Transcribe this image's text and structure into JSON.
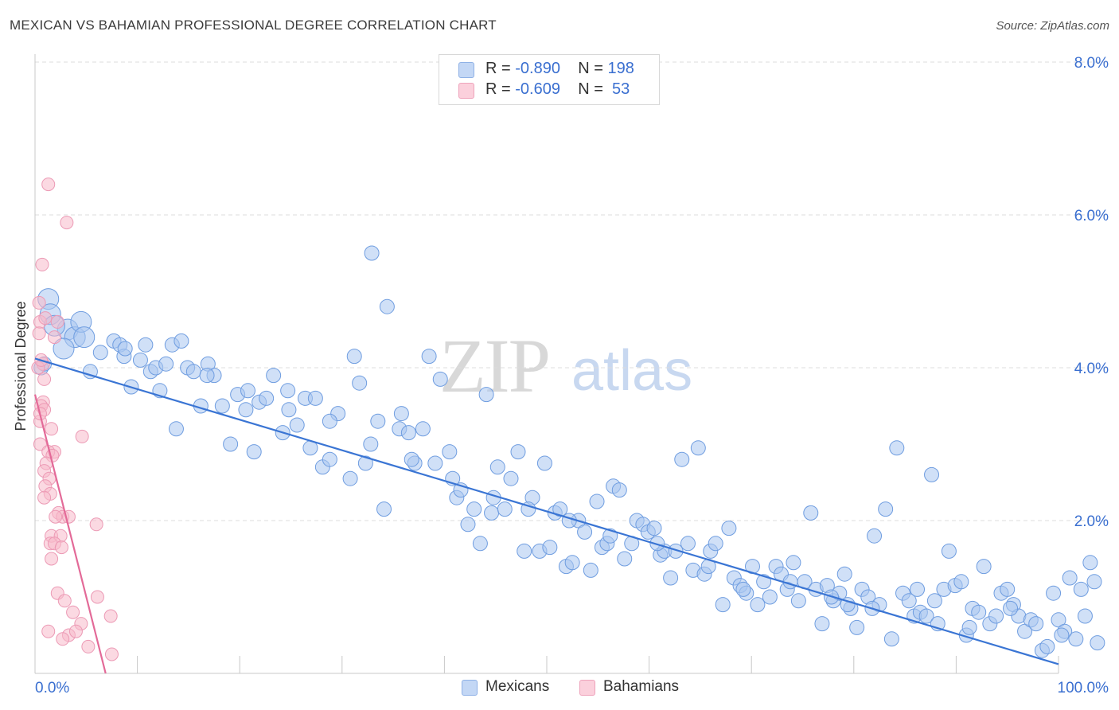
{
  "header": {
    "title": "MEXICAN VS BAHAMIAN PROFESSIONAL DEGREE CORRELATION CHART",
    "source": "Source: ZipAtlas.com"
  },
  "watermark": {
    "part1": "ZIP",
    "part2": "atlas"
  },
  "legend": {
    "rows": [
      {
        "r_label": "R = ",
        "r_value": "-0.890",
        "n_label": "N = ",
        "n_value": "198",
        "color": "#a9c6f0"
      },
      {
        "r_label": "R = ",
        "r_value": "-0.609",
        "n_label": "N = ",
        "n_value": " 53",
        "color": "#f7b9cb"
      }
    ],
    "bottom": [
      {
        "name": "Mexicans",
        "color": "#a9c6f0"
      },
      {
        "name": "Bahamians",
        "color": "#f7b9cb"
      }
    ]
  },
  "chart_data": {
    "type": "scatter",
    "title": "MEXICAN VS BAHAMIAN PROFESSIONAL DEGREE CORRELATION CHART",
    "xlabel": "",
    "ylabel": "Professional Degree",
    "xlim": [
      0,
      100
    ],
    "ylim": [
      0,
      8.0
    ],
    "x_tick_labels": [
      "0.0%",
      "100.0%"
    ],
    "y_ticks": [
      2.0,
      4.0,
      6.0,
      8.0
    ],
    "y_tick_labels": [
      "2.0%",
      "4.0%",
      "6.0%",
      "8.0%"
    ],
    "grid": "horizontal dashed",
    "legend_placement": "top-center",
    "colors": {
      "mexicans": "#3a75d4",
      "mexicans_fill": "#a9c6f0",
      "bahamians": "#e36a98",
      "bahamians_fill": "#f7b9cb"
    },
    "series": [
      {
        "name": "Mexicans",
        "r": -0.89,
        "n": 198,
        "trend": [
          [
            0,
            4.12
          ],
          [
            100,
            0.12
          ]
        ],
        "points": [
          [
            1.3,
            4.9
          ],
          [
            1.5,
            4.7
          ],
          [
            3.2,
            4.5
          ],
          [
            3.9,
            4.4
          ],
          [
            2.8,
            4.25
          ],
          [
            4.5,
            4.6
          ],
          [
            0.6,
            4.0
          ],
          [
            0.9,
            4.05
          ],
          [
            5.4,
            3.95
          ],
          [
            6.4,
            4.2
          ],
          [
            7.7,
            4.35
          ],
          [
            8.3,
            4.3
          ],
          [
            8.7,
            4.15
          ],
          [
            9.4,
            3.75
          ],
          [
            10.8,
            4.3
          ],
          [
            10.3,
            4.1
          ],
          [
            11.3,
            3.95
          ],
          [
            12.2,
            3.7
          ],
          [
            11.8,
            4.0
          ],
          [
            13.4,
            4.3
          ],
          [
            14.3,
            4.35
          ],
          [
            14.9,
            4.0
          ],
          [
            13.8,
            3.2
          ],
          [
            16.2,
            3.5
          ],
          [
            15.5,
            3.95
          ],
          [
            16.9,
            4.05
          ],
          [
            17.5,
            3.9
          ],
          [
            18.3,
            3.5
          ],
          [
            19.1,
            3.0
          ],
          [
            19.8,
            3.65
          ],
          [
            20.6,
            3.45
          ],
          [
            21.4,
            2.9
          ],
          [
            21.9,
            3.55
          ],
          [
            22.6,
            3.6
          ],
          [
            23.3,
            3.9
          ],
          [
            24.2,
            3.15
          ],
          [
            24.7,
            3.7
          ],
          [
            25.6,
            3.25
          ],
          [
            26.4,
            3.6
          ],
          [
            26.9,
            2.95
          ],
          [
            27.4,
            3.6
          ],
          [
            28.1,
            2.7
          ],
          [
            28.8,
            2.8
          ],
          [
            29.6,
            3.4
          ],
          [
            30.8,
            2.55
          ],
          [
            31.2,
            4.15
          ],
          [
            31.7,
            3.8
          ],
          [
            32.3,
            2.75
          ],
          [
            32.9,
            5.5
          ],
          [
            33.5,
            3.3
          ],
          [
            34.4,
            4.8
          ],
          [
            34.1,
            2.15
          ],
          [
            35.8,
            3.4
          ],
          [
            35.6,
            3.2
          ],
          [
            36.5,
            3.15
          ],
          [
            37.1,
            2.75
          ],
          [
            37.9,
            3.2
          ],
          [
            38.5,
            4.15
          ],
          [
            39.1,
            2.75
          ],
          [
            39.6,
            3.85
          ],
          [
            40.5,
            2.9
          ],
          [
            41.2,
            2.3
          ],
          [
            41.6,
            2.4
          ],
          [
            42.3,
            1.95
          ],
          [
            42.9,
            2.15
          ],
          [
            43.5,
            1.7
          ],
          [
            44.1,
            3.65
          ],
          [
            44.6,
            2.1
          ],
          [
            45.2,
            2.7
          ],
          [
            45.9,
            2.15
          ],
          [
            46.5,
            2.55
          ],
          [
            47.2,
            2.9
          ],
          [
            47.8,
            1.6
          ],
          [
            48.6,
            2.3
          ],
          [
            49.3,
            1.6
          ],
          [
            49.8,
            2.75
          ],
          [
            50.3,
            1.65
          ],
          [
            50.8,
            2.1
          ],
          [
            51.3,
            2.15
          ],
          [
            51.9,
            1.4
          ],
          [
            52.5,
            1.45
          ],
          [
            53.1,
            2.0
          ],
          [
            53.7,
            1.85
          ],
          [
            54.3,
            1.35
          ],
          [
            54.9,
            2.25
          ],
          [
            55.4,
            1.65
          ],
          [
            55.9,
            1.7
          ],
          [
            56.5,
            2.45
          ],
          [
            57.1,
            2.4
          ],
          [
            57.6,
            1.5
          ],
          [
            58.3,
            1.7
          ],
          [
            58.8,
            2.0
          ],
          [
            59.4,
            1.95
          ],
          [
            59.9,
            1.85
          ],
          [
            60.5,
            1.9
          ],
          [
            61.1,
            1.55
          ],
          [
            61.5,
            1.6
          ],
          [
            62.1,
            1.25
          ],
          [
            62.6,
            1.6
          ],
          [
            63.2,
            2.8
          ],
          [
            63.8,
            1.7
          ],
          [
            64.3,
            1.35
          ],
          [
            64.8,
            2.95
          ],
          [
            65.4,
            1.3
          ],
          [
            66.0,
            1.6
          ],
          [
            66.5,
            1.7
          ],
          [
            67.2,
            0.9
          ],
          [
            67.8,
            1.9
          ],
          [
            68.3,
            1.25
          ],
          [
            68.9,
            1.15
          ],
          [
            69.5,
            1.05
          ],
          [
            70.1,
            1.4
          ],
          [
            70.6,
            0.9
          ],
          [
            71.2,
            1.2
          ],
          [
            71.8,
            1.0
          ],
          [
            72.4,
            1.4
          ],
          [
            72.9,
            1.3
          ],
          [
            73.5,
            1.1
          ],
          [
            74.1,
            1.45
          ],
          [
            74.6,
            0.95
          ],
          [
            75.2,
            1.2
          ],
          [
            75.8,
            2.1
          ],
          [
            76.3,
            1.1
          ],
          [
            76.9,
            0.65
          ],
          [
            77.4,
            1.15
          ],
          [
            78.0,
            0.95
          ],
          [
            78.6,
            1.05
          ],
          [
            79.1,
            1.3
          ],
          [
            79.7,
            0.85
          ],
          [
            80.3,
            0.6
          ],
          [
            80.8,
            1.1
          ],
          [
            81.4,
            1.0
          ],
          [
            82.0,
            1.8
          ],
          [
            82.5,
            0.9
          ],
          [
            83.1,
            2.15
          ],
          [
            83.7,
            0.45
          ],
          [
            84.2,
            2.95
          ],
          [
            84.8,
            1.05
          ],
          [
            85.4,
            0.95
          ],
          [
            85.9,
            0.75
          ],
          [
            86.5,
            0.8
          ],
          [
            87.1,
            0.75
          ],
          [
            87.6,
            2.6
          ],
          [
            88.2,
            0.65
          ],
          [
            88.8,
            1.1
          ],
          [
            89.3,
            1.6
          ],
          [
            89.9,
            1.15
          ],
          [
            90.5,
            1.2
          ],
          [
            91.0,
            0.5
          ],
          [
            91.6,
            0.85
          ],
          [
            92.2,
            0.8
          ],
          [
            92.7,
            1.4
          ],
          [
            93.3,
            0.65
          ],
          [
            93.9,
            0.75
          ],
          [
            94.4,
            1.05
          ],
          [
            95.0,
            1.1
          ],
          [
            95.6,
            0.9
          ],
          [
            96.1,
            0.75
          ],
          [
            96.7,
            0.55
          ],
          [
            97.3,
            0.7
          ],
          [
            97.8,
            0.65
          ],
          [
            98.4,
            0.3
          ],
          [
            98.9,
            0.35
          ],
          [
            99.5,
            1.05
          ],
          [
            100.0,
            0.7
          ],
          [
            100.6,
            0.55
          ],
          [
            101.1,
            1.25
          ],
          [
            101.7,
            0.45
          ],
          [
            102.2,
            1.1
          ],
          [
            102.6,
            0.75
          ],
          [
            103.1,
            1.45
          ],
          [
            103.5,
            1.2
          ],
          [
            103.8,
            0.4
          ],
          [
            100.3,
            0.5
          ],
          [
            95.3,
            0.85
          ],
          [
            91.3,
            0.6
          ],
          [
            87.9,
            0.95
          ],
          [
            86.2,
            1.1
          ],
          [
            81.8,
            0.85
          ],
          [
            79.4,
            0.9
          ],
          [
            77.8,
            1.0
          ],
          [
            73.8,
            1.2
          ],
          [
            69.2,
            1.1
          ],
          [
            65.8,
            1.4
          ],
          [
            60.8,
            1.7
          ],
          [
            56.2,
            1.8
          ],
          [
            52.2,
            2.0
          ],
          [
            48.2,
            2.15
          ],
          [
            44.8,
            2.3
          ],
          [
            40.8,
            2.55
          ],
          [
            36.8,
            2.8
          ],
          [
            32.8,
            3.0
          ],
          [
            28.8,
            3.3
          ],
          [
            24.8,
            3.45
          ],
          [
            20.8,
            3.7
          ],
          [
            16.8,
            3.9
          ],
          [
            12.8,
            4.05
          ],
          [
            8.8,
            4.25
          ],
          [
            4.8,
            4.4
          ],
          [
            1.9,
            4.55
          ]
        ]
      },
      {
        "name": "Bahamians",
        "r": -0.609,
        "n": 53,
        "trend": [
          [
            0,
            3.65
          ],
          [
            6.9,
            0.0
          ]
        ],
        "points": [
          [
            1.3,
            6.4
          ],
          [
            3.1,
            5.9
          ],
          [
            0.7,
            5.35
          ],
          [
            0.4,
            4.85
          ],
          [
            0.5,
            4.6
          ],
          [
            0.4,
            4.45
          ],
          [
            1.9,
            4.4
          ],
          [
            0.8,
            4.05
          ],
          [
            0.3,
            4.0
          ],
          [
            0.9,
            3.85
          ],
          [
            0.8,
            3.55
          ],
          [
            0.6,
            3.5
          ],
          [
            0.9,
            3.45
          ],
          [
            0.5,
            3.3
          ],
          [
            1.6,
            3.2
          ],
          [
            4.6,
            3.1
          ],
          [
            0.5,
            3.0
          ],
          [
            1.9,
            2.9
          ],
          [
            1.3,
            2.9
          ],
          [
            1.7,
            2.85
          ],
          [
            1.1,
            2.75
          ],
          [
            0.9,
            2.65
          ],
          [
            1.4,
            2.55
          ],
          [
            1.0,
            2.45
          ],
          [
            1.5,
            2.35
          ],
          [
            0.9,
            2.3
          ],
          [
            2.3,
            2.1
          ],
          [
            2.7,
            2.05
          ],
          [
            3.3,
            2.05
          ],
          [
            2.0,
            2.05
          ],
          [
            6.0,
            1.95
          ],
          [
            1.6,
            1.8
          ],
          [
            2.5,
            1.8
          ],
          [
            1.5,
            1.7
          ],
          [
            1.9,
            1.7
          ],
          [
            2.6,
            1.65
          ],
          [
            1.6,
            1.5
          ],
          [
            2.2,
            1.05
          ],
          [
            2.9,
            0.95
          ],
          [
            3.7,
            0.8
          ],
          [
            7.4,
            0.75
          ],
          [
            6.1,
            1.0
          ],
          [
            4.5,
            0.65
          ],
          [
            1.3,
            0.55
          ],
          [
            3.3,
            0.5
          ],
          [
            2.7,
            0.45
          ],
          [
            4.0,
            0.55
          ],
          [
            5.2,
            0.35
          ],
          [
            7.5,
            0.25
          ],
          [
            0.6,
            4.1
          ],
          [
            1.0,
            4.65
          ],
          [
            0.5,
            3.4
          ],
          [
            2.2,
            4.6
          ]
        ]
      }
    ]
  }
}
